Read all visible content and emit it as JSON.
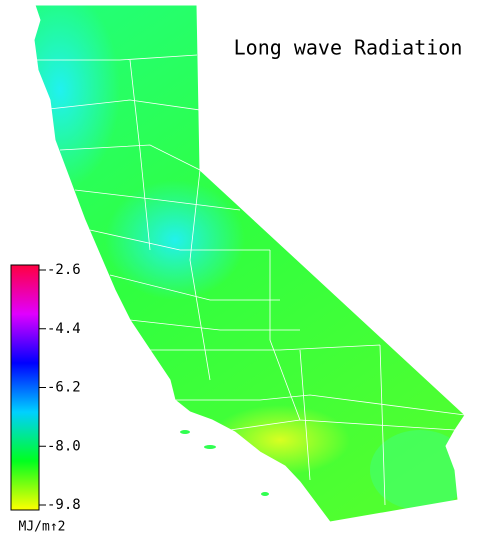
{
  "title": "Long wave Radiation",
  "colorbar": {
    "lim": [
      -9.8,
      -2.6
    ],
    "ticks": [
      -2.6,
      -4.4,
      -6.2,
      {
        "value": -8,
        "label": "-8.0"
      },
      -9.8
    ],
    "colors": [
      "#ffff00",
      "#00ff20",
      "#00d0ff",
      "#0000ff",
      "#e000ff",
      "#ff0040"
    ],
    "unit_label": "MJ/m↑2"
  }
}
